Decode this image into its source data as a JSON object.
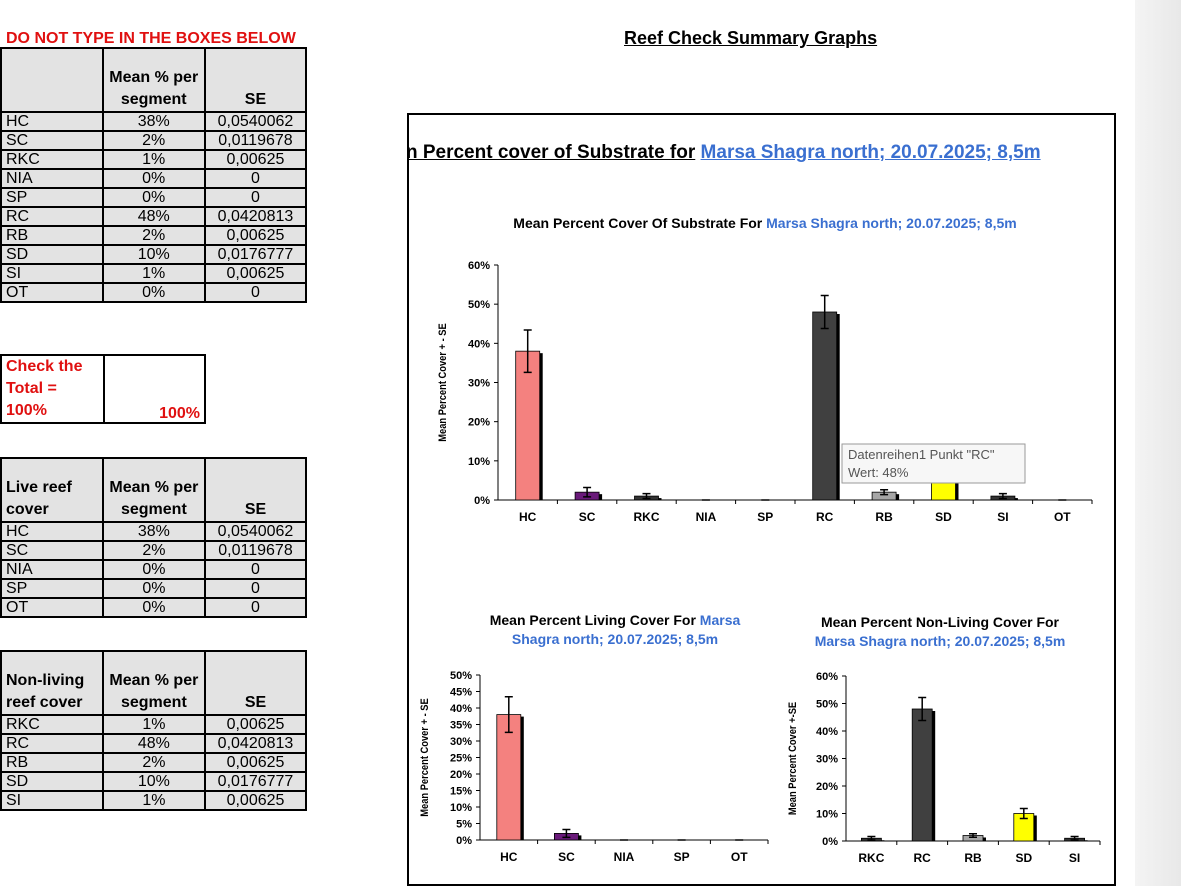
{
  "warning": "DO NOT TYPE IN THE BOXES BELOW",
  "page_title": "Reef Check Summary Graphs",
  "substrate_table": {
    "header": [
      "Mean % per segment",
      "SE"
    ],
    "rows": [
      [
        "HC",
        "38%",
        "0,0540062"
      ],
      [
        "SC",
        "2%",
        "0,0119678"
      ],
      [
        "RKC",
        "1%",
        "0,00625"
      ],
      [
        "NIA",
        "0%",
        "0"
      ],
      [
        "SP",
        "0%",
        "0"
      ],
      [
        "RC",
        "48%",
        "0,0420813"
      ],
      [
        "RB",
        "2%",
        "0,00625"
      ],
      [
        "SD",
        "10%",
        "0,0176777"
      ],
      [
        "SI",
        "1%",
        "0,00625"
      ],
      [
        "OT",
        "0%",
        "0"
      ]
    ]
  },
  "total_check": {
    "label": "Check the Total = 100%",
    "value": "100%"
  },
  "live_table": {
    "header": [
      "Live reef cover",
      "Mean % per segment",
      "SE"
    ],
    "rows": [
      [
        "HC",
        "38%",
        "0,0540062"
      ],
      [
        "SC",
        "2%",
        "0,0119678"
      ],
      [
        "NIA",
        "0%",
        "0"
      ],
      [
        "SP",
        "0%",
        "0"
      ],
      [
        "OT",
        "0%",
        "0"
      ]
    ]
  },
  "nonliving_table": {
    "header": [
      "Non-living reef cover",
      "Mean % per segment",
      "SE"
    ],
    "rows": [
      [
        "RKC",
        "1%",
        "0,00625"
      ],
      [
        "RC",
        "48%",
        "0,0420813"
      ],
      [
        "RB",
        "2%",
        "0,00625"
      ],
      [
        "SD",
        "10%",
        "0,0176777"
      ],
      [
        "SI",
        "1%",
        "0,00625"
      ]
    ]
  },
  "frame_title": "Mean Percent cover of Substrate for",
  "frame_title_site": "Marsa Shagra north; 20.07.2025; 8,5m",
  "tooltip": {
    "series": "Datenreihen1 Punkt \"RC\"",
    "value": "Wert: 48%"
  },
  "chart_data": [
    {
      "type": "bar",
      "title": "Mean Percent Cover Of Substrate For",
      "title_site": "Marsa Shagra north; 20.07.2025; 8,5m",
      "ylabel": "Mean Percent Cover + - SE",
      "categories": [
        "HC",
        "SC",
        "RKC",
        "NIA",
        "SP",
        "RC",
        "RB",
        "SD",
        "SI",
        "OT"
      ],
      "values": [
        38,
        2,
        1,
        0,
        0,
        48,
        2,
        10,
        1,
        0
      ],
      "errors": [
        5.4,
        1.2,
        0.625,
        0,
        0,
        4.2,
        0.625,
        1.8,
        0.625,
        0
      ],
      "colors": [
        "#f4817f",
        "#6a1a7a",
        "#333333",
        "#333333",
        "#333333",
        "#404040",
        "#a6a6a6",
        "#ffff00",
        "#333333",
        "#333333"
      ],
      "ylim": [
        0,
        60
      ],
      "yticks": [
        {
          "value": 0,
          "label": "0%"
        },
        {
          "value": 10,
          "label": "10%"
        },
        {
          "value": 20,
          "label": "20%"
        },
        {
          "value": 30,
          "label": "30%"
        },
        {
          "value": 40,
          "label": "40%"
        },
        {
          "value": 50,
          "label": "50%"
        },
        {
          "value": 60,
          "label": "60%"
        }
      ]
    },
    {
      "type": "bar",
      "title": "Mean Percent Living Cover For",
      "title_site": "Marsa Shagra north; 20.07.2025; 8,5m",
      "ylabel": "Mean Percent Cover + - SE",
      "categories": [
        "HC",
        "SC",
        "NIA",
        "SP",
        "OT"
      ],
      "values": [
        38,
        2,
        0,
        0,
        0
      ],
      "errors": [
        5.4,
        1.2,
        0,
        0,
        0
      ],
      "colors": [
        "#f4817f",
        "#6a1a7a",
        "#333333",
        "#333333",
        "#333333"
      ],
      "ylim": [
        0,
        50
      ],
      "yticks": [
        {
          "value": 0,
          "label": "0%"
        },
        {
          "value": 5,
          "label": "5%"
        },
        {
          "value": 10,
          "label": "10%"
        },
        {
          "value": 15,
          "label": "15%"
        },
        {
          "value": 20,
          "label": "20%"
        },
        {
          "value": 25,
          "label": "25%"
        },
        {
          "value": 30,
          "label": "30%"
        },
        {
          "value": 35,
          "label": "35%"
        },
        {
          "value": 40,
          "label": "40%"
        },
        {
          "value": 45,
          "label": "45%"
        },
        {
          "value": 50,
          "label": "50%"
        }
      ]
    },
    {
      "type": "bar",
      "title": "Mean Percent Non-Living Cover For",
      "title_site": "Marsa Shagra north; 20.07.2025; 8,5m",
      "ylabel": "Mean Percent Cover +-SE",
      "categories": [
        "RKC",
        "RC",
        "RB",
        "SD",
        "SI"
      ],
      "values": [
        1,
        48,
        2,
        10,
        1
      ],
      "errors": [
        0.625,
        4.2,
        0.625,
        1.8,
        0.625
      ],
      "colors": [
        "#333333",
        "#404040",
        "#a6a6a6",
        "#ffff00",
        "#333333"
      ],
      "ylim": [
        0,
        60
      ],
      "yticks": [
        {
          "value": 0,
          "label": "0%"
        },
        {
          "value": 10,
          "label": "10%"
        },
        {
          "value": 20,
          "label": "20%"
        },
        {
          "value": 30,
          "label": "30%"
        },
        {
          "value": 40,
          "label": "40%"
        },
        {
          "value": 50,
          "label": "50%"
        },
        {
          "value": 60,
          "label": "60%"
        }
      ]
    }
  ]
}
